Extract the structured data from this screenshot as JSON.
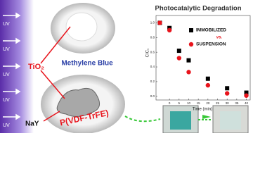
{
  "uv_labels": [
    "UV",
    "UV",
    "UV",
    "UV",
    "UV"
  ],
  "labels": {
    "tio2": "TiO₂",
    "methylene_blue": "Methylene Blue",
    "nay": "NaY",
    "polymer": "P(VDF-TrFE)"
  },
  "chart_data": {
    "type": "scatter",
    "title": "Photocatalytic Degradation",
    "xlabel": "Time (min)",
    "ylabel": "C/C₀",
    "x": [
      -5,
      0,
      5,
      10,
      20,
      30,
      40
    ],
    "series": [
      {
        "name": "IMMOBILIZED",
        "color": "#000000",
        "marker": "square",
        "values": [
          1.0,
          0.93,
          0.62,
          0.49,
          0.24,
          0.11,
          0.05
        ]
      },
      {
        "name": "SUSPENSION",
        "color": "#e8141c",
        "marker": "circle",
        "values": [
          1.0,
          0.9,
          0.52,
          0.33,
          0.15,
          0.04,
          0.01
        ]
      }
    ],
    "legend_note": "vs.",
    "xlim": [
      -7,
      42
    ],
    "xticks": [
      0,
      5,
      10,
      15,
      20,
      25,
      30,
      35,
      40
    ],
    "ylim": [
      -0.05,
      1.1
    ],
    "yticks": [
      {
        "value": 0,
        "label": "0.0"
      },
      {
        "value": 0.2,
        "label": "0.2"
      },
      {
        "value": 0.4,
        "label": "0.4"
      },
      {
        "value": 0.6,
        "label": "0.6"
      },
      {
        "value": 0.8,
        "label": "0.8"
      },
      {
        "value": 1,
        "label": "1.0"
      }
    ]
  }
}
